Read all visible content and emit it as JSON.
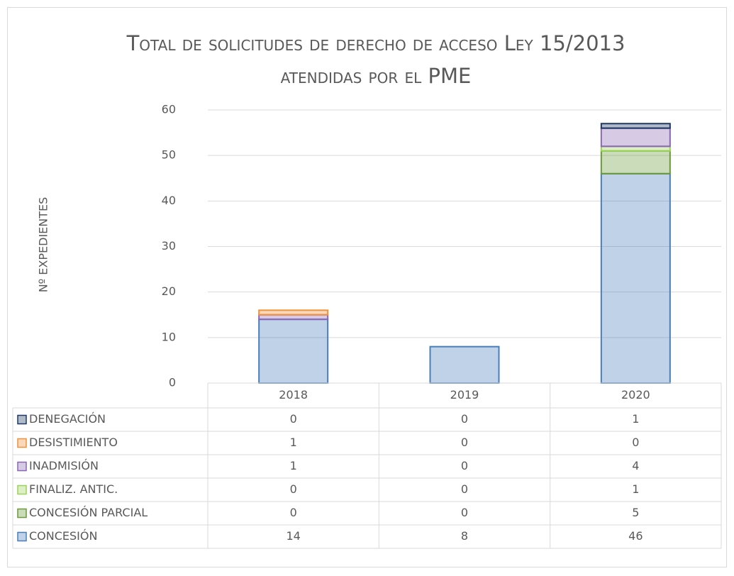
{
  "chart_data": {
    "type": "stacked_bar",
    "title": "Total de solicitudes de derecho de acceso Ley 15/2013 atendidas por el PME",
    "y_label": "Nº EXPEDIENTES",
    "categories": [
      "2018",
      "2019",
      "2020"
    ],
    "series": [
      {
        "name": "CONCESIÓN",
        "color": "#4a7ebb",
        "values": [
          14,
          8,
          46
        ]
      },
      {
        "name": "CONCESIÓN PARCIAL",
        "color": "#6b9a3a",
        "values": [
          0,
          0,
          5
        ]
      },
      {
        "name": "FINALIZ. ANTIC.",
        "color": "#9bd25a",
        "values": [
          0,
          0,
          1
        ]
      },
      {
        "name": "INADMISIÓN",
        "color": "#8b67b5",
        "values": [
          1,
          0,
          4
        ]
      },
      {
        "name": "DESISTIMIENTO",
        "color": "#f0913c",
        "values": [
          1,
          0,
          0
        ]
      },
      {
        "name": "DENEGACIÓN",
        "color": "#1f3864",
        "values": [
          0,
          0,
          1
        ]
      }
    ],
    "ylim": [
      0,
      60
    ],
    "yticks": [
      0,
      10,
      20,
      30,
      40,
      50,
      60
    ],
    "grid": true,
    "data_table": true
  }
}
